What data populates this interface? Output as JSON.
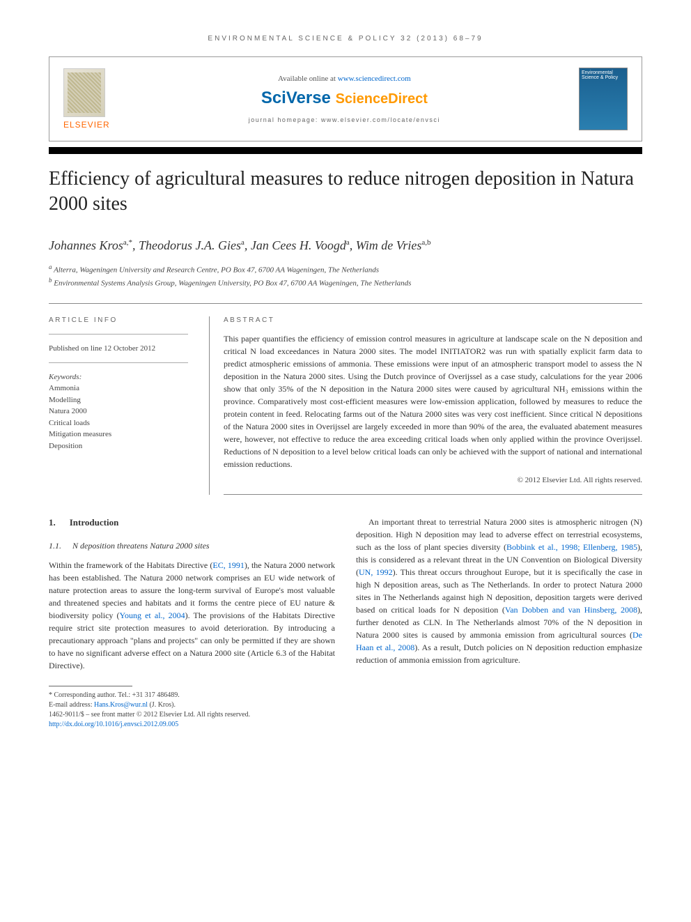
{
  "running_head": "ENVIRONMENTAL SCIENCE & POLICY 32 (2013) 68–79",
  "header": {
    "elsevier": "ELSEVIER",
    "available_prefix": "Available online at ",
    "available_url": "www.sciencedirect.com",
    "sciverse": "SciVerse ",
    "sciencedirect": "ScienceDirect",
    "homepage_label": "journal homepage: www.elsevier.com/locate/envsci",
    "cover_title": "Environmental Science & Policy"
  },
  "title": "Efficiency of agricultural measures to reduce nitrogen deposition in Natura 2000 sites",
  "authors": "Johannes Kros",
  "authors_full": [
    {
      "name": "Johannes Kros",
      "sup": "a,*"
    },
    {
      "name": "Theodorus J.A. Gies",
      "sup": "a"
    },
    {
      "name": "Jan Cees H. Voogd",
      "sup": "a"
    },
    {
      "name": "Wim de Vries",
      "sup": "a,b"
    }
  ],
  "affiliations": [
    {
      "sup": "a",
      "text": "Alterra, Wageningen University and Research Centre, PO Box 47, 6700 AA Wageningen, The Netherlands"
    },
    {
      "sup": "b",
      "text": "Environmental Systems Analysis Group, Wageningen University, PO Box 47, 6700 AA Wageningen, The Netherlands"
    }
  ],
  "info": {
    "label": "ARTICLE INFO",
    "pub_date": "Published on line 12 October 2012",
    "keywords_label": "Keywords:",
    "keywords": [
      "Ammonia",
      "Modelling",
      "Natura 2000",
      "Critical loads",
      "Mitigation measures",
      "Deposition"
    ]
  },
  "abstract": {
    "label": "ABSTRACT",
    "text": "This paper quantifies the efficiency of emission control measures in agriculture at landscape scale on the N deposition and critical N load exceedances in Natura 2000 sites. The model INITIATOR2 was run with spatially explicit farm data to predict atmospheric emissions of ammonia. These emissions were input of an atmospheric transport model to assess the N deposition in the Natura 2000 sites. Using the Dutch province of Overijssel as a case study, calculations for the year 2006 show that only 35% of the N deposition in the Natura 2000 sites were caused by agricultural NH₃ emissions within the province. Comparatively most cost-efficient measures were low-emission application, followed by measures to reduce the protein content in feed. Relocating farms out of the Natura 2000 sites was very cost inefficient. Since critical N depositions of the Natura 2000 sites in Overijssel are largely exceeded in more than 90% of the area, the evaluated abatement measures were, however, not effective to reduce the area exceeding critical loads when only applied within the province Overijssel. Reductions of N deposition to a level below critical loads can only be achieved with the support of national and international emission reductions.",
    "copyright": "© 2012 Elsevier Ltd. All rights reserved."
  },
  "body": {
    "sec1_num": "1.",
    "sec1_title": "Introduction",
    "sec11_num": "1.1.",
    "sec11_title": "N deposition threatens Natura 2000 sites",
    "col1_p1_a": "Within the framework of the Habitats Directive (",
    "col1_ref1": "EC, 1991",
    "col1_p1_b": "), the Natura 2000 network has been established. The Natura 2000 network comprises an EU wide network of nature protection areas to assure the long-term survival of Europe's most valuable and threatened species and habitats and it forms the centre piece of EU nature & biodiversity policy (",
    "col1_ref2": "Young et al., 2004",
    "col1_p1_c": "). The provisions of the Habitats Directive require strict site protection measures to avoid deterioration. By introducing a precautionary approach \"plans and projects\" can only be permitted if they are shown to have no significant adverse effect on a Natura 2000 site (Article 6.3 of the Habitat Directive).",
    "col2_p1_a": "An important threat to terrestrial Natura 2000 sites is atmospheric nitrogen (N) deposition. High N deposition may lead to adverse effect on terrestrial ecosystems, such as the loss of plant species diversity (",
    "col2_ref1": "Bobbink et al., 1998; Ellenberg, 1985",
    "col2_p1_b": "), this is considered as a relevant threat in the UN Convention on Biological Diversity (",
    "col2_ref2": "UN, 1992",
    "col2_p1_c": "). This threat occurs throughout Europe, but it is specifically the case in high N deposition areas, such as The Netherlands. In order to protect Natura 2000 sites in The Netherlands against high N deposition, deposition targets were derived based on critical loads for N deposition (",
    "col2_ref3": "Van Dobben and van Hinsberg, 2008",
    "col2_p1_d": "), further denoted as CLN. In The Netherlands almost 70% of the N deposition in Natura 2000 sites is caused by ammonia emission from agricultural sources (",
    "col2_ref4": "De Haan et al., 2008",
    "col2_p1_e": "). As a result, Dutch policies on N deposition reduction emphasize reduction of ammonia emission from agriculture."
  },
  "footnotes": {
    "corr": "* Corresponding author. Tel.: +31 317 486489.",
    "email_label": "E-mail address: ",
    "email": "Hans.Kros@wur.nl",
    "email_suffix": " (J. Kros).",
    "issn": "1462-9011/$ – see front matter © 2012 Elsevier Ltd. All rights reserved.",
    "doi": "http://dx.doi.org/10.1016/j.envsci.2012.09.005"
  },
  "colors": {
    "link": "#0066cc",
    "elsevier_orange": "#ff6600",
    "sciverse_blue": "#0066aa",
    "sd_orange": "#ff9900"
  }
}
